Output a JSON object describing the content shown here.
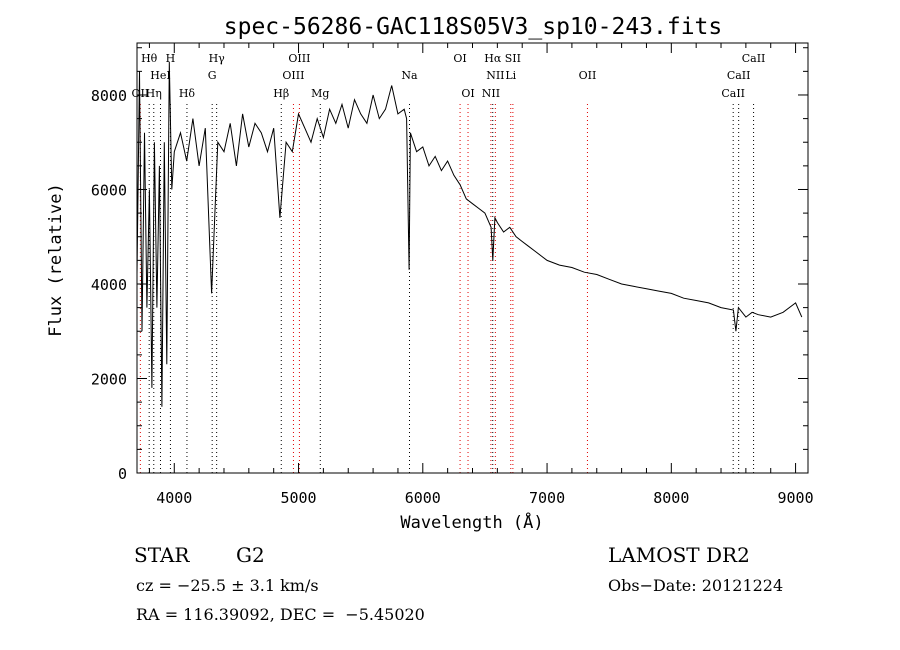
{
  "chart_data": {
    "type": "line",
    "title": "spec-56286-GAC118S05V3_sp10-243.fits",
    "xlabel": "Wavelength (Å)",
    "ylabel": "Flux (relative)",
    "xlim": [
      3700,
      9100
    ],
    "ylim": [
      0,
      9100
    ],
    "xticks": [
      4000,
      5000,
      6000,
      7000,
      8000,
      9000
    ],
    "yticks": [
      0,
      2000,
      4000,
      6000,
      8000
    ],
    "xtick_labels": [
      "4000",
      "5000",
      "6000",
      "7000",
      "8000",
      "9000"
    ],
    "ytick_labels": [
      "0",
      "2000",
      "4000",
      "6000",
      "8000"
    ],
    "grid": false,
    "colors": {
      "line": "#000000",
      "absorption": "#000000",
      "emission": "#e00000"
    },
    "series": [
      {
        "x": [
          3700,
          3720,
          3740,
          3760,
          3780,
          3800,
          3820,
          3840,
          3860,
          3880,
          3900,
          3920,
          3940,
          3960,
          3980,
          4000,
          4050,
          4100,
          4150,
          4200,
          4250,
          4300,
          4350,
          4400,
          4450,
          4500,
          4550,
          4600,
          4650,
          4700,
          4750,
          4800,
          4850,
          4900,
          4950,
          5000,
          5050,
          5100,
          5150,
          5200,
          5250,
          5300,
          5350,
          5400,
          5450,
          5500,
          5550,
          5600,
          5650,
          5700,
          5750,
          5800,
          5850,
          5870,
          5890,
          5900,
          5950,
          6000,
          6050,
          6100,
          6150,
          6200,
          6250,
          6300,
          6350,
          6400,
          6450,
          6500,
          6550,
          6563,
          6580,
          6600,
          6650,
          6700,
          6750,
          6800,
          6850,
          6900,
          6950,
          7000,
          7100,
          7200,
          7300,
          7400,
          7500,
          7600,
          7700,
          7800,
          7900,
          8000,
          8100,
          8200,
          8300,
          8400,
          8500,
          8520,
          8540,
          8600,
          8650,
          8700,
          8800,
          8900,
          9000,
          9050
        ],
        "y": [
          4200,
          8500,
          3000,
          7200,
          3500,
          6000,
          1800,
          7000,
          3500,
          6500,
          1400,
          7000,
          2300,
          8700,
          6000,
          6800,
          7200,
          6600,
          7500,
          6500,
          7300,
          3800,
          7000,
          6800,
          7400,
          6500,
          7600,
          6900,
          7400,
          7200,
          6800,
          7300,
          5400,
          7000,
          6800,
          7600,
          7300,
          7000,
          7500,
          7100,
          7700,
          7400,
          7800,
          7300,
          7900,
          7600,
          7400,
          8000,
          7500,
          7700,
          8200,
          7600,
          7700,
          7500,
          4300,
          7200,
          6800,
          6900,
          6500,
          6700,
          6400,
          6600,
          6300,
          6100,
          5800,
          5700,
          5600,
          5500,
          5200,
          4500,
          5400,
          5300,
          5100,
          5200,
          5000,
          4900,
          4800,
          4700,
          4600,
          4500,
          4400,
          4350,
          4250,
          4200,
          4100,
          4000,
          3950,
          3900,
          3850,
          3800,
          3700,
          3650,
          3600,
          3500,
          3450,
          3000,
          3500,
          3300,
          3400,
          3350,
          3300,
          3400,
          3600,
          3300
        ]
      }
    ],
    "line_markers": [
      {
        "label": "Hθ",
        "x": 3798,
        "row": 1,
        "type": "absorption"
      },
      {
        "label": "H",
        "x": 3969,
        "row": 1,
        "type": "absorption"
      },
      {
        "label": "Hγ",
        "x": 4341,
        "row": 1,
        "type": "absorption"
      },
      {
        "label": "OIII",
        "x": 5007,
        "row": 1,
        "type": "emission"
      },
      {
        "label": "OI",
        "x": 6300,
        "row": 1,
        "type": "emission"
      },
      {
        "label": "Hα",
        "x": 6563,
        "row": 1,
        "type": "absorption"
      },
      {
        "label": "SII",
        "x": 6725,
        "row": 1,
        "type": "emission"
      },
      {
        "label": "CaII",
        "x": 8662,
        "row": 1,
        "type": "absorption"
      },
      {
        "label": "HeI",
        "x": 3889,
        "row": 2,
        "type": "absorption"
      },
      {
        "label": "G",
        "x": 4305,
        "row": 2,
        "type": "absorption"
      },
      {
        "label": "OIII",
        "x": 4959,
        "row": 2,
        "type": "emission"
      },
      {
        "label": "Na",
        "x": 5893,
        "row": 2,
        "type": "absorption"
      },
      {
        "label": "NII",
        "x": 6584,
        "row": 2,
        "type": "emission"
      },
      {
        "label": "Li",
        "x": 6708,
        "row": 2,
        "type": "emission"
      },
      {
        "label": "OII",
        "x": 7325,
        "row": 2,
        "type": "emission"
      },
      {
        "label": "CaII",
        "x": 8542,
        "row": 2,
        "type": "absorption"
      },
      {
        "label": "OII",
        "x": 3727,
        "row": 3,
        "type": "emission"
      },
      {
        "label": "Hη",
        "x": 3835,
        "row": 3,
        "type": "absorption"
      },
      {
        "label": "Hδ",
        "x": 4102,
        "row": 3,
        "type": "absorption"
      },
      {
        "label": "Hβ",
        "x": 4861,
        "row": 3,
        "type": "absorption"
      },
      {
        "label": "Mg",
        "x": 5175,
        "row": 3,
        "type": "absorption"
      },
      {
        "label": "OI",
        "x": 6364,
        "row": 3,
        "type": "emission"
      },
      {
        "label": "NII",
        "x": 6548,
        "row": 3,
        "type": "emission"
      },
      {
        "label": "CaII",
        "x": 8498,
        "row": 3,
        "type": "absorption"
      }
    ]
  },
  "info": {
    "object_type": "STAR",
    "subclass": "G2",
    "survey": "LAMOST DR2",
    "cz": "cz = −25.5 ± 3.1 km/s",
    "obs_date": "Obs−Date: 20121224",
    "coords": "RA = 116.39092, DEC =  −5.45020"
  }
}
